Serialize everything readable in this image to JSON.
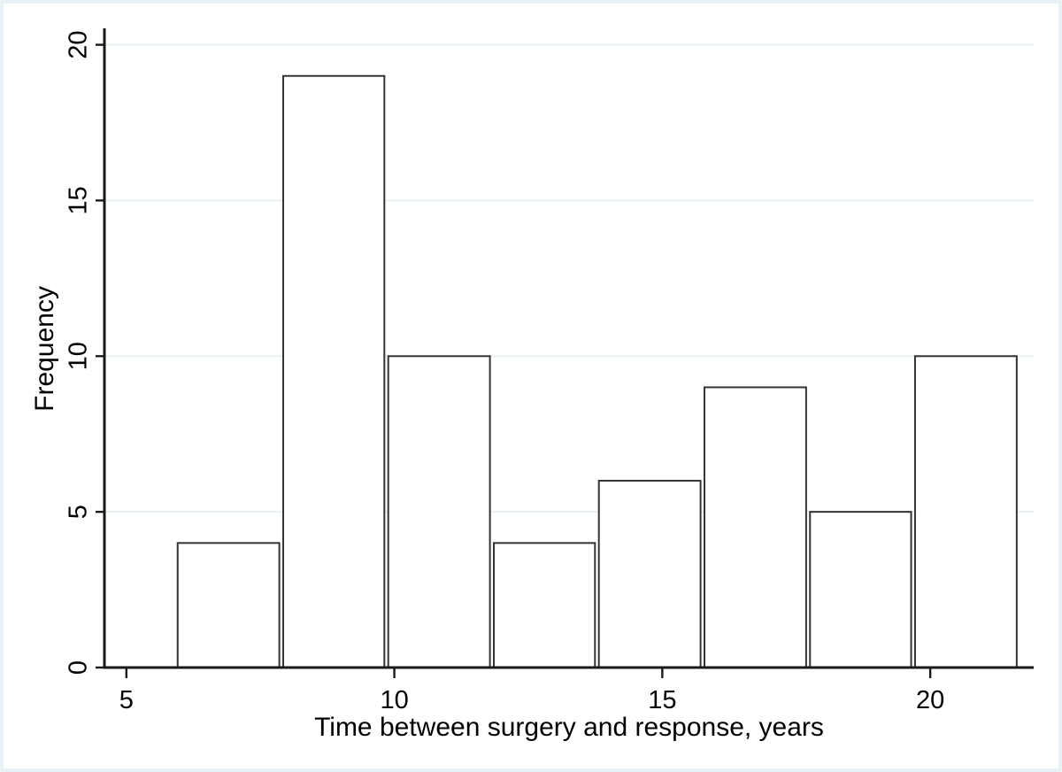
{
  "figure": {
    "background": "#ffffff",
    "frame_color": "#e9f2f4"
  },
  "chart_data": {
    "type": "bar",
    "subtype": "histogram",
    "title": "",
    "xlabel": "Time between surgery and response, years",
    "ylabel": "Frequency",
    "bins": [
      {
        "x0": 5.92,
        "x1": 7.89,
        "count": 4
      },
      {
        "x0": 7.89,
        "x1": 9.85,
        "count": 19
      },
      {
        "x0": 9.85,
        "x1": 11.82,
        "count": 10
      },
      {
        "x0": 11.82,
        "x1": 13.78,
        "count": 4
      },
      {
        "x0": 13.78,
        "x1": 15.75,
        "count": 6
      },
      {
        "x0": 15.75,
        "x1": 17.72,
        "count": 9
      },
      {
        "x0": 17.72,
        "x1": 19.68,
        "count": 5
      },
      {
        "x0": 19.68,
        "x1": 21.65,
        "count": 10
      }
    ],
    "x_ticks": [
      5,
      10,
      15,
      20
    ],
    "y_ticks": [
      0,
      5,
      10,
      15,
      20
    ],
    "xlim": [
      4.59,
      21.93
    ],
    "ylim": [
      0,
      20.5
    ],
    "grid": "horizontal-only",
    "legend": "none",
    "colors": {
      "bar_fill": "#ffffff",
      "bar_stroke": "#333333",
      "axis": "#1a1a1a",
      "gridline": "#e8f1f2",
      "text": "#000000"
    }
  }
}
